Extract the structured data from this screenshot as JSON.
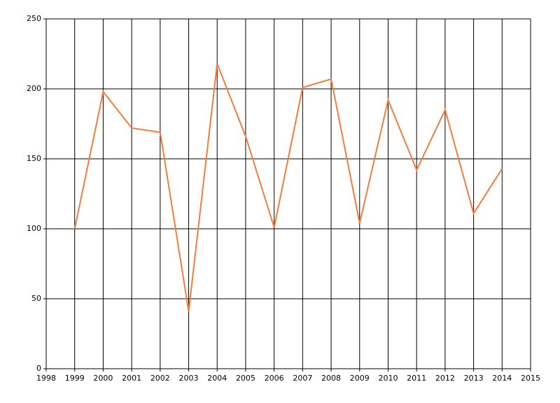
{
  "chart_data": {
    "type": "line",
    "x": [
      1999,
      2000,
      2001,
      2002,
      2003,
      2004,
      2005,
      2006,
      2007,
      2008,
      2009,
      2010,
      2011,
      2012,
      2013,
      2014
    ],
    "series": [
      {
        "color": "#f47c3c",
        "values": [
          100,
          198,
          172,
          169,
          41,
          218,
          166,
          101,
          201,
          207,
          104,
          192,
          142,
          185,
          111,
          143
        ]
      }
    ],
    "xlim": [
      1998,
      2015
    ],
    "xticks": [
      1998,
      1999,
      2000,
      2001,
      2002,
      2003,
      2004,
      2005,
      2006,
      2007,
      2008,
      2009,
      2010,
      2011,
      2012,
      2013,
      2014,
      2015
    ],
    "ylim": [
      0,
      250
    ],
    "yticks": [
      0,
      50,
      100,
      150,
      200,
      250
    ],
    "grid": true
  }
}
